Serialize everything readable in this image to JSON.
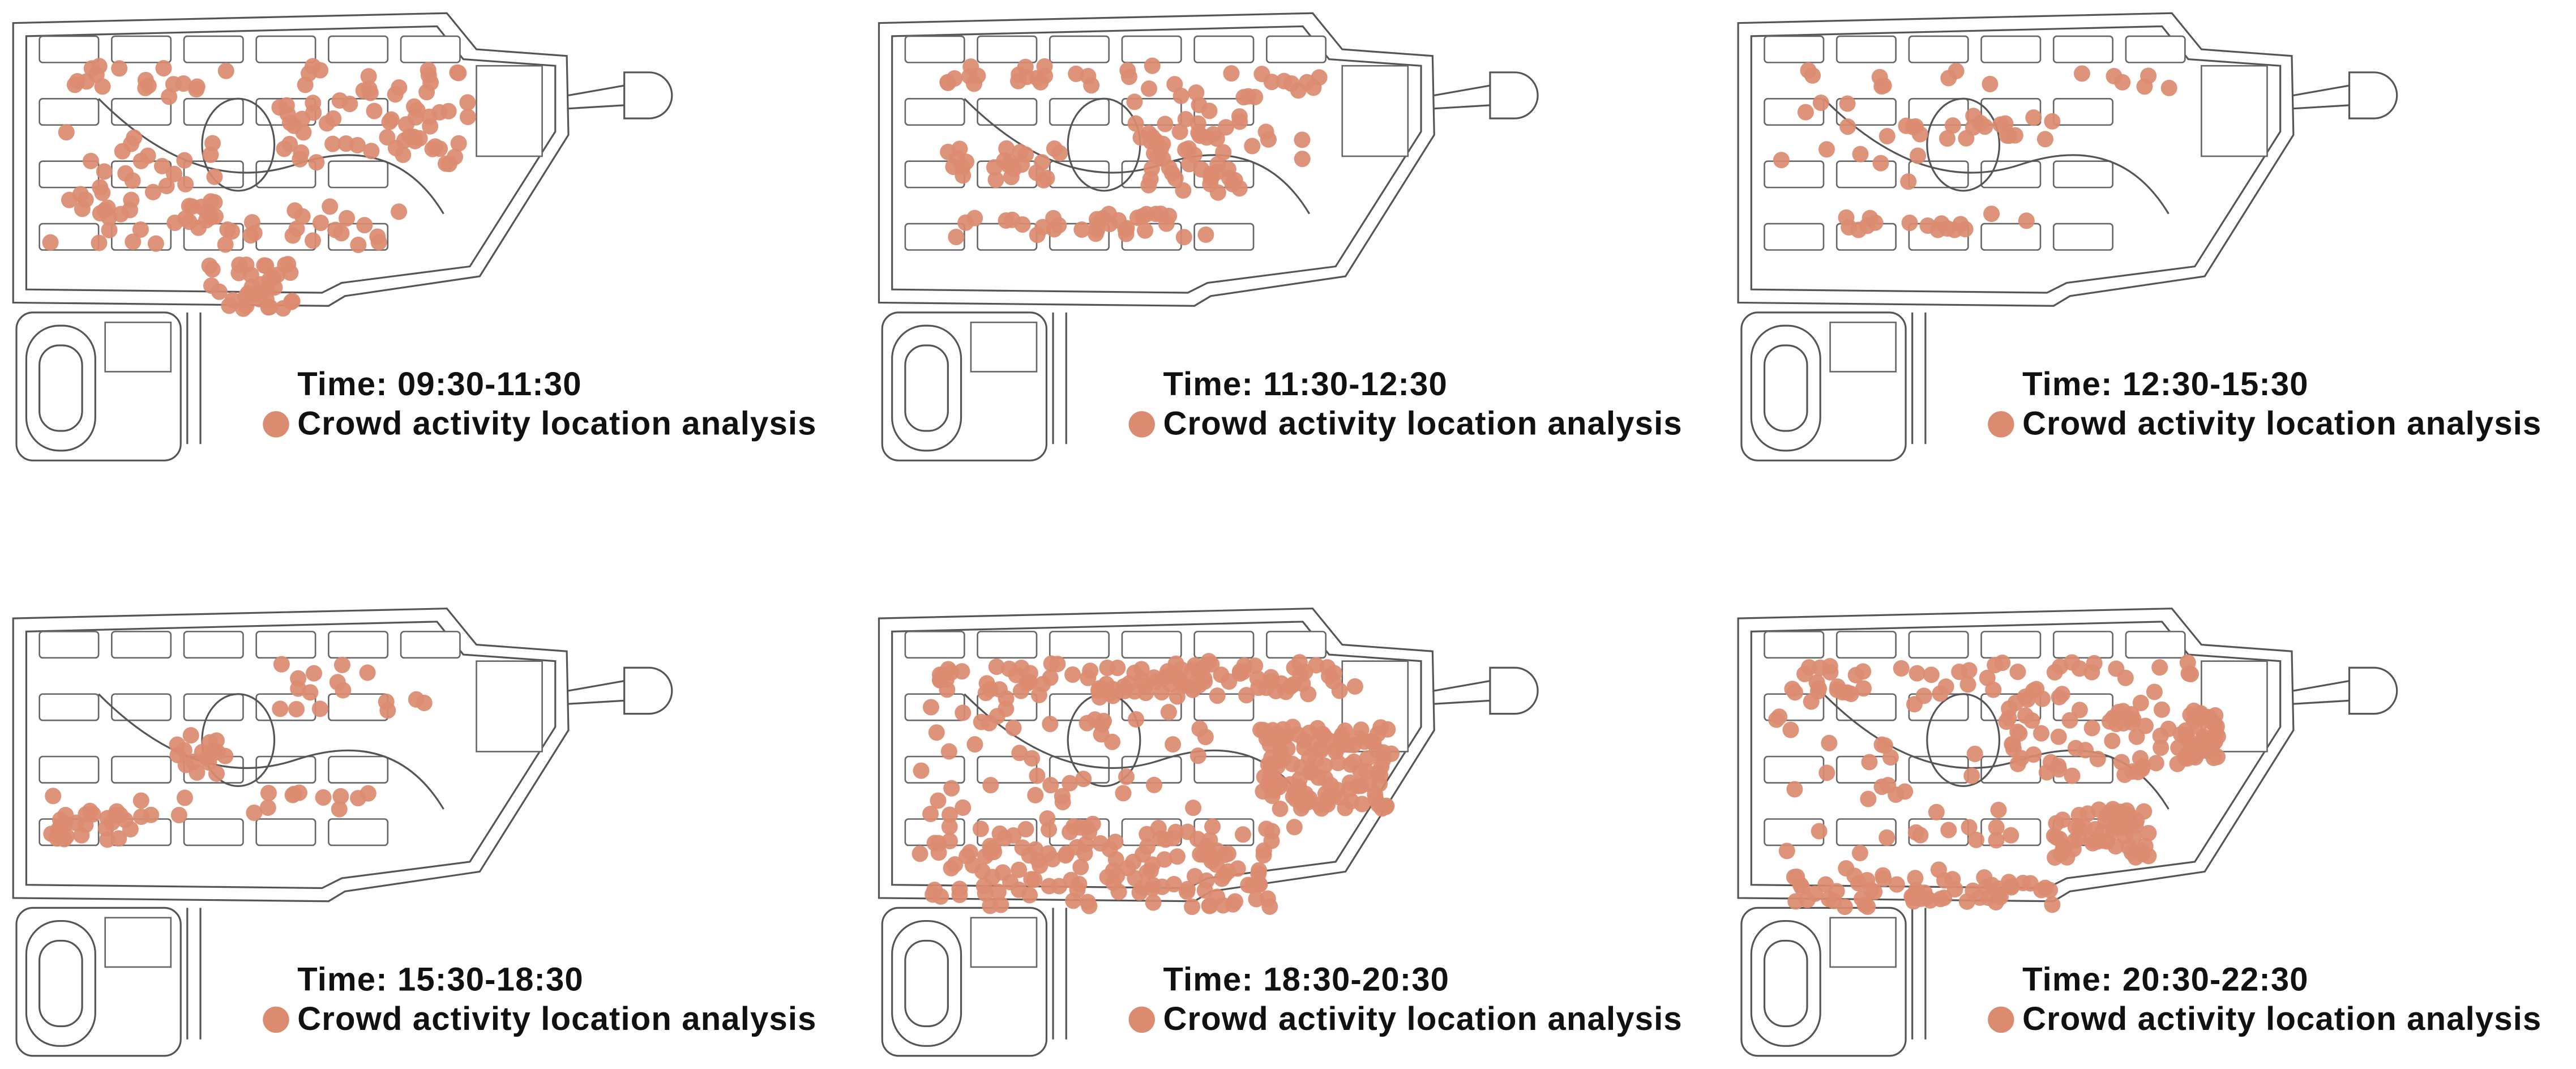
{
  "panels": [
    {
      "time": "Time: 09:30-11:30",
      "legend": "Crowd activity location analysis"
    },
    {
      "time": "Time: 11:30-12:30",
      "legend": "Crowd activity location analysis"
    },
    {
      "time": "Time: 12:30-15:30",
      "legend": "Crowd activity location analysis"
    },
    {
      "time": "Time: 15:30-18:30",
      "legend": "Crowd activity location analysis"
    },
    {
      "time": "Time: 18:30-20:30",
      "legend": "Crowd activity location analysis"
    },
    {
      "time": "Time: 20:30-22:30",
      "legend": "Crowd activity location analysis"
    }
  ]
}
